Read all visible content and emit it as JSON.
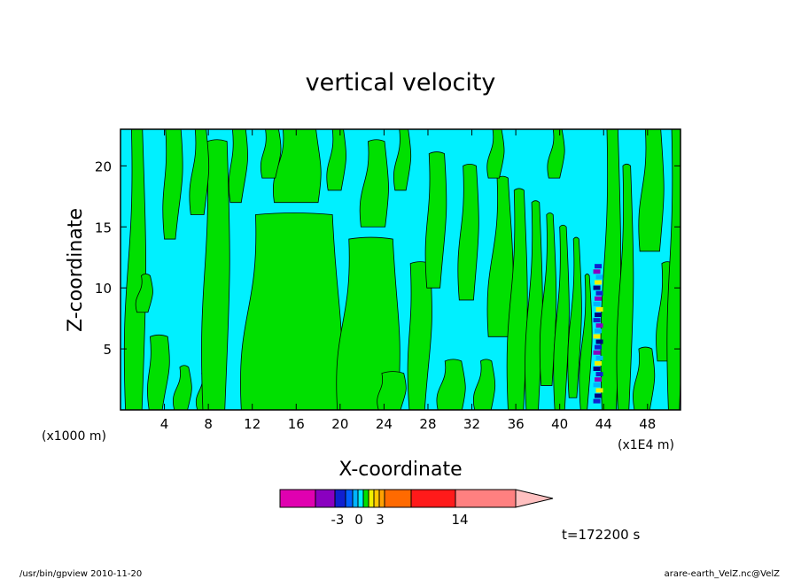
{
  "title": "vertical velocity",
  "x_axis": {
    "label": "X-coordinate",
    "unit_left": "(x1000 m)",
    "unit_right": "(x1E4 m)",
    "ticks": [
      "4",
      "8",
      "12",
      "16",
      "20",
      "24",
      "28",
      "32",
      "36",
      "40",
      "44",
      "48"
    ]
  },
  "y_axis": {
    "label": "Z-coordinate",
    "ticks": [
      "5",
      "10",
      "15",
      "20"
    ]
  },
  "colorbar": {
    "colors": [
      "#e000b0",
      "#8a00c0",
      "#1020d0",
      "#0060ff",
      "#00b4ff",
      "#00f0ff",
      "#00e000",
      "#f0f000",
      "#ffc800",
      "#ffa000",
      "#ff6a00",
      "#ff1a1a",
      "#ff8080",
      "#ffc0c0"
    ],
    "labels": [
      "-3",
      "0",
      "3",
      "14"
    ]
  },
  "time_label": "t=172200 s",
  "footer_left": "/usr/bin/gpview   2010-11-20",
  "footer_right": "arare-earth_VelZ.nc@VelZ",
  "chart_data": {
    "type": "heatmap",
    "title": "vertical velocity",
    "xlabel": "X-coordinate",
    "ylabel": "Z-coordinate",
    "x_unit": "(x1000 m)",
    "xlim": [
      0,
      51
    ],
    "ylim": [
      0,
      23
    ],
    "x_ticks": [
      4,
      8,
      12,
      16,
      20,
      24,
      28,
      32,
      36,
      40,
      44,
      48
    ],
    "y_ticks": [
      5,
      10,
      15,
      20
    ],
    "colorbar_labels": [
      -3,
      0,
      3,
      14
    ],
    "dominant_levels": [
      {
        "name": "slightly negative",
        "color": "#00f0ff"
      },
      {
        "name": "slightly positive",
        "color": "#00e000"
      }
    ],
    "notable_feature": {
      "x": 43.5,
      "z_range": [
        0.5,
        12
      ],
      "description": "narrow strong updraft/downdraft column"
    }
  }
}
